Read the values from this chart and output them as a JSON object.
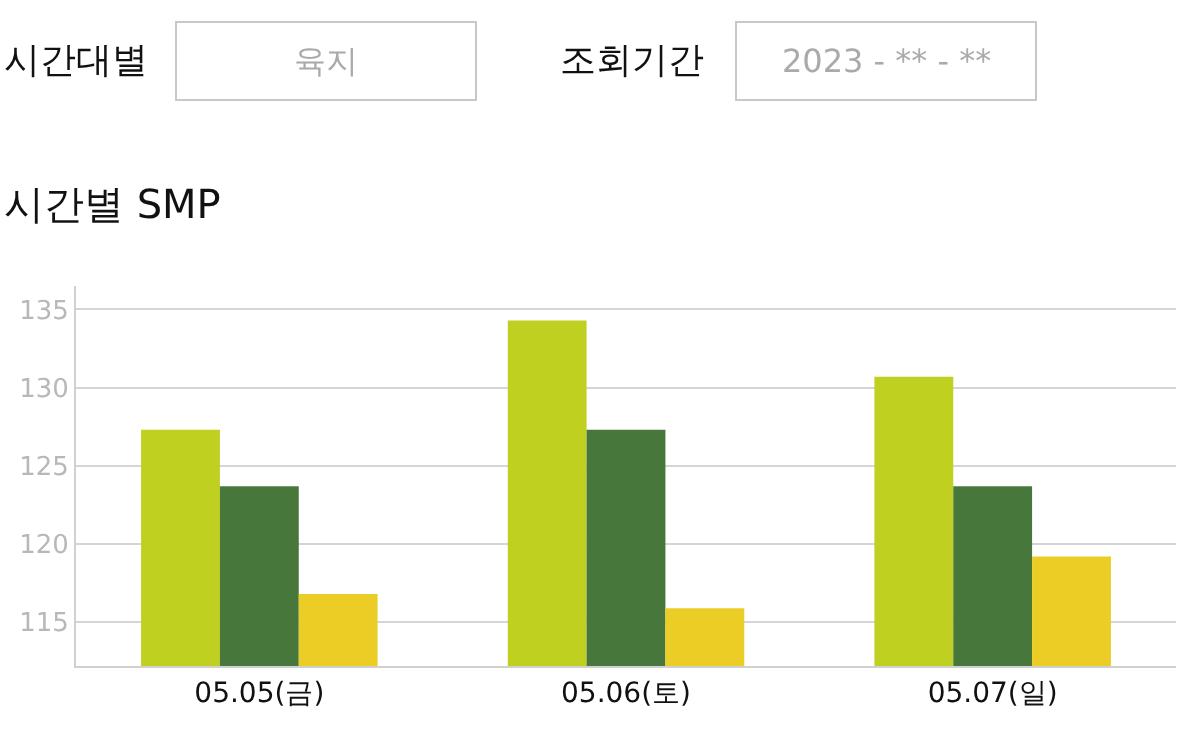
{
  "chart_data": {
    "type": "bar",
    "title": "시간별 SMP",
    "annotations": [
      "시간대별",
      "육지",
      "조회기간",
      "2023 - ** - **"
    ],
    "categories": [
      "05.05(금)",
      "05.06(토)",
      "05.07(일)"
    ],
    "series": [
      {
        "color": "#bfd020",
        "values": [
          127.3,
          134.3,
          130.7
        ]
      },
      {
        "color": "#48773c",
        "values": [
          123.7,
          127.3,
          123.7
        ]
      },
      {
        "color": "#ebcd25",
        "values": [
          116.8,
          115.9,
          119.2
        ]
      }
    ],
    "ylim": [
      112.2,
      136.5
    ],
    "yticks": [
      115,
      120,
      125,
      130,
      135
    ],
    "grid": "y"
  }
}
